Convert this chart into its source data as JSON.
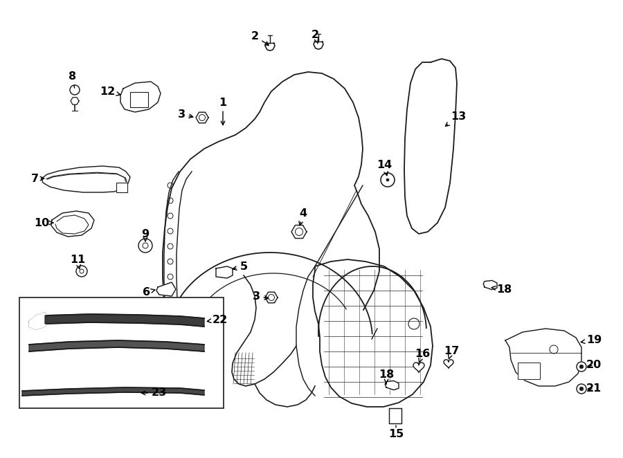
{
  "bg_color": "#ffffff",
  "line_color": "#1a1a1a",
  "figsize": [
    9.0,
    6.62
  ],
  "dpi": 100
}
